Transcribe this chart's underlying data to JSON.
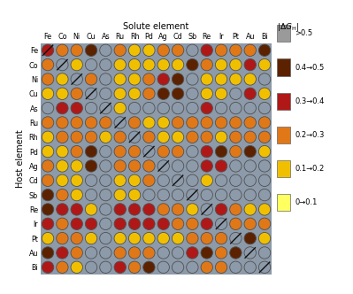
{
  "title_top": "Solute element",
  "title_left": "Host element",
  "col_labels": [
    "Fe",
    "Co",
    "Ni",
    "Cu",
    "As",
    "Ru",
    "Rh",
    "Pd",
    "Ag",
    "Cd",
    "Sb",
    "Re",
    "Ir",
    "Pt",
    "Au",
    "Bi"
  ],
  "row_labels": [
    "Fe",
    "Co",
    "Ni",
    "Cu",
    "As",
    "Ru",
    "Rh",
    "Pd",
    "Ag",
    "Cd",
    "Sb",
    "Re",
    "Ir",
    "Pt",
    "Au",
    "Bi"
  ],
  "legend_labels": [
    ">0.5",
    "0.4→0.5",
    "0.3→0.4",
    "0.2→0.3",
    "0.1→0.2",
    "0→0.1"
  ],
  "legend_colors": [
    "#9a9a9a",
    "#5c2200",
    "#b01818",
    "#e07818",
    "#f0c000",
    "#ffff60"
  ],
  "bg_color": "#8c9aaa",
  "circle_edge": "#505050",
  "color_map": {
    "G": "#8c9aaa",
    "B": "#5c2200",
    "R": "#b01818",
    "O": "#e07818",
    "Y": "#f0c000",
    "L": "#ffff60"
  },
  "matrix": [
    [
      "R",
      "O",
      "O",
      "B",
      "G",
      "O",
      "Y",
      "Y",
      "O",
      "O",
      "G",
      "R",
      "O",
      "O",
      "O",
      "B"
    ],
    [
      "O",
      "G",
      "Y",
      "G",
      "G",
      "Y",
      "Y",
      "Y",
      "Y",
      "Y",
      "B",
      "O",
      "Y",
      "Y",
      "R",
      "Y"
    ],
    [
      "O",
      "Y",
      "G",
      "O",
      "G",
      "Y",
      "Y",
      "O",
      "R",
      "B",
      "G",
      "Y",
      "Y",
      "Y",
      "Y",
      "G"
    ],
    [
      "Y",
      "Y",
      "O",
      "G",
      "G",
      "Y",
      "Y",
      "O",
      "B",
      "B",
      "G",
      "Y",
      "Y",
      "G",
      "R",
      "Y"
    ],
    [
      "G",
      "R",
      "R",
      "G",
      "G",
      "Y",
      "G",
      "G",
      "G",
      "G",
      "G",
      "R",
      "G",
      "G",
      "G",
      "G"
    ],
    [
      "O",
      "O",
      "O",
      "O",
      "O",
      "G",
      "O",
      "Y",
      "Y",
      "O",
      "O",
      "O",
      "O",
      "O",
      "O",
      "O"
    ],
    [
      "Y",
      "O",
      "O",
      "O",
      "Y",
      "O",
      "G",
      "O",
      "Y",
      "Y",
      "O",
      "O",
      "Y",
      "O",
      "O",
      "O"
    ],
    [
      "Y",
      "Y",
      "O",
      "B",
      "G",
      "O",
      "O",
      "G",
      "O",
      "O",
      "G",
      "R",
      "B",
      "O",
      "B",
      "Y"
    ],
    [
      "O",
      "Y",
      "Y",
      "B",
      "G",
      "O",
      "O",
      "O",
      "G",
      "G",
      "G",
      "R",
      "R",
      "G",
      "G",
      "G"
    ],
    [
      "O",
      "Y",
      "Y",
      "G",
      "G",
      "Y",
      "Y",
      "O",
      "G",
      "G",
      "G",
      "Y",
      "G",
      "G",
      "G",
      "G"
    ],
    [
      "B",
      "O",
      "Y",
      "G",
      "G",
      "Y",
      "Y",
      "G",
      "G",
      "G",
      "G",
      "G",
      "G",
      "G",
      "G",
      "G"
    ],
    [
      "B",
      "R",
      "R",
      "Y",
      "G",
      "R",
      "R",
      "R",
      "O",
      "O",
      "Y",
      "G",
      "R",
      "O",
      "Y",
      "Y"
    ],
    [
      "R",
      "O",
      "R",
      "R",
      "G",
      "R",
      "R",
      "R",
      "R",
      "O",
      "O",
      "R",
      "G",
      "O",
      "O",
      "O"
    ],
    [
      "Y",
      "O",
      "O",
      "Y",
      "G",
      "Y",
      "Y",
      "Y",
      "Y",
      "Y",
      "O",
      "O",
      "O",
      "G",
      "B",
      "Y"
    ],
    [
      "B",
      "R",
      "O",
      "G",
      "G",
      "O",
      "O",
      "O",
      "G",
      "G",
      "R",
      "B",
      "O",
      "B",
      "G",
      "G"
    ],
    [
      "R",
      "O",
      "Y",
      "G",
      "G",
      "R",
      "O",
      "B",
      "G",
      "G",
      "G",
      "O",
      "O",
      "G",
      "G",
      "G"
    ]
  ]
}
